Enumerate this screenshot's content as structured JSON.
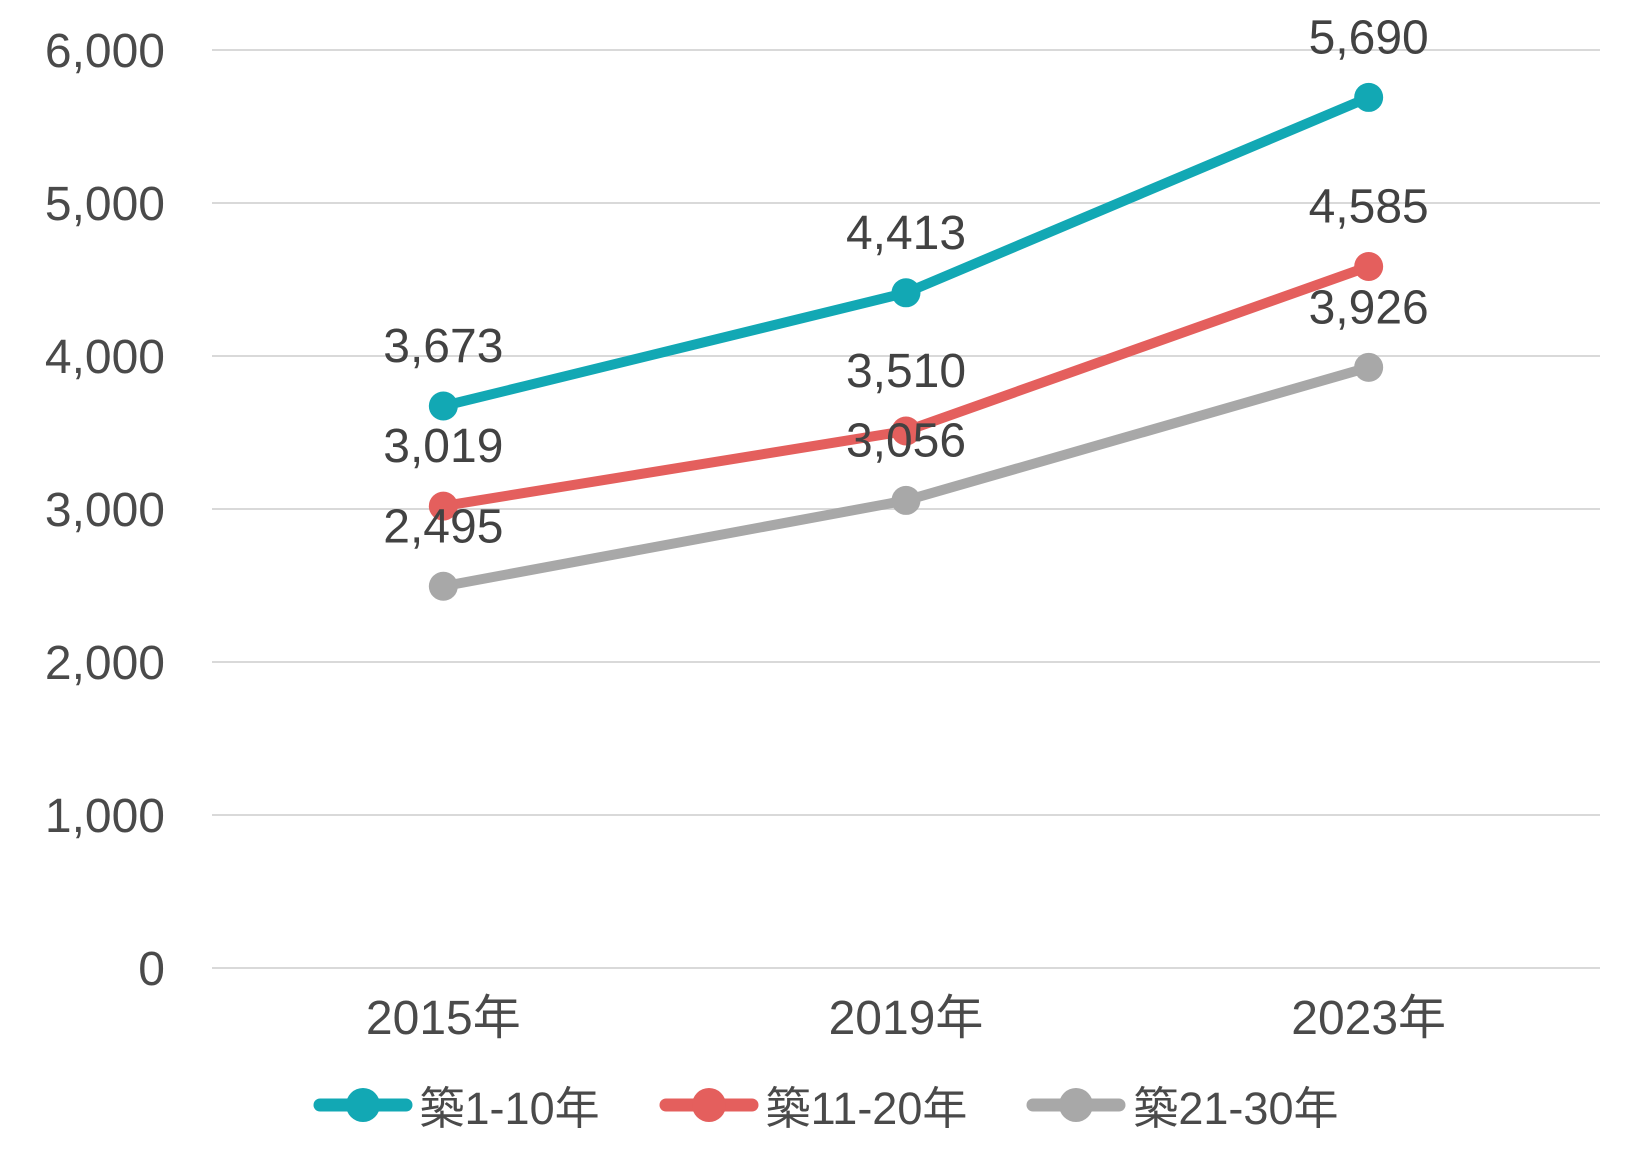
{
  "chart_data": {
    "type": "line",
    "categories": [
      "2015年",
      "2019年",
      "2023年"
    ],
    "series": [
      {
        "name": "築1-10年",
        "color": "#12A8B4",
        "values": [
          3673,
          4413,
          5690
        ],
        "value_labels": [
          "3,673",
          "4,413",
          "5,690"
        ]
      },
      {
        "name": "築11-20年",
        "color": "#E45F5D",
        "values": [
          3019,
          3510,
          4585
        ],
        "value_labels": [
          "3,019",
          "3,510",
          "4,585"
        ]
      },
      {
        "name": "築21-30年",
        "color": "#A8A8A8",
        "values": [
          2495,
          3056,
          3926
        ],
        "value_labels": [
          "2,495",
          "3,056",
          "3,926"
        ]
      }
    ],
    "y_axis": {
      "min": 0,
      "max": 6000,
      "step": 1000,
      "tick_labels": [
        "0",
        "1,000",
        "2,000",
        "3,000",
        "4,000",
        "5,000",
        "6,000"
      ]
    },
    "ylim": [
      0,
      6000
    ],
    "grid": true,
    "legend_position": "bottom",
    "data_labels_shown": true
  },
  "styles": {
    "background": "#FFFFFF",
    "grid_color": "#D9D9D9",
    "tick_text_color": "#4A4A4A",
    "label_text_color": "#424242"
  }
}
